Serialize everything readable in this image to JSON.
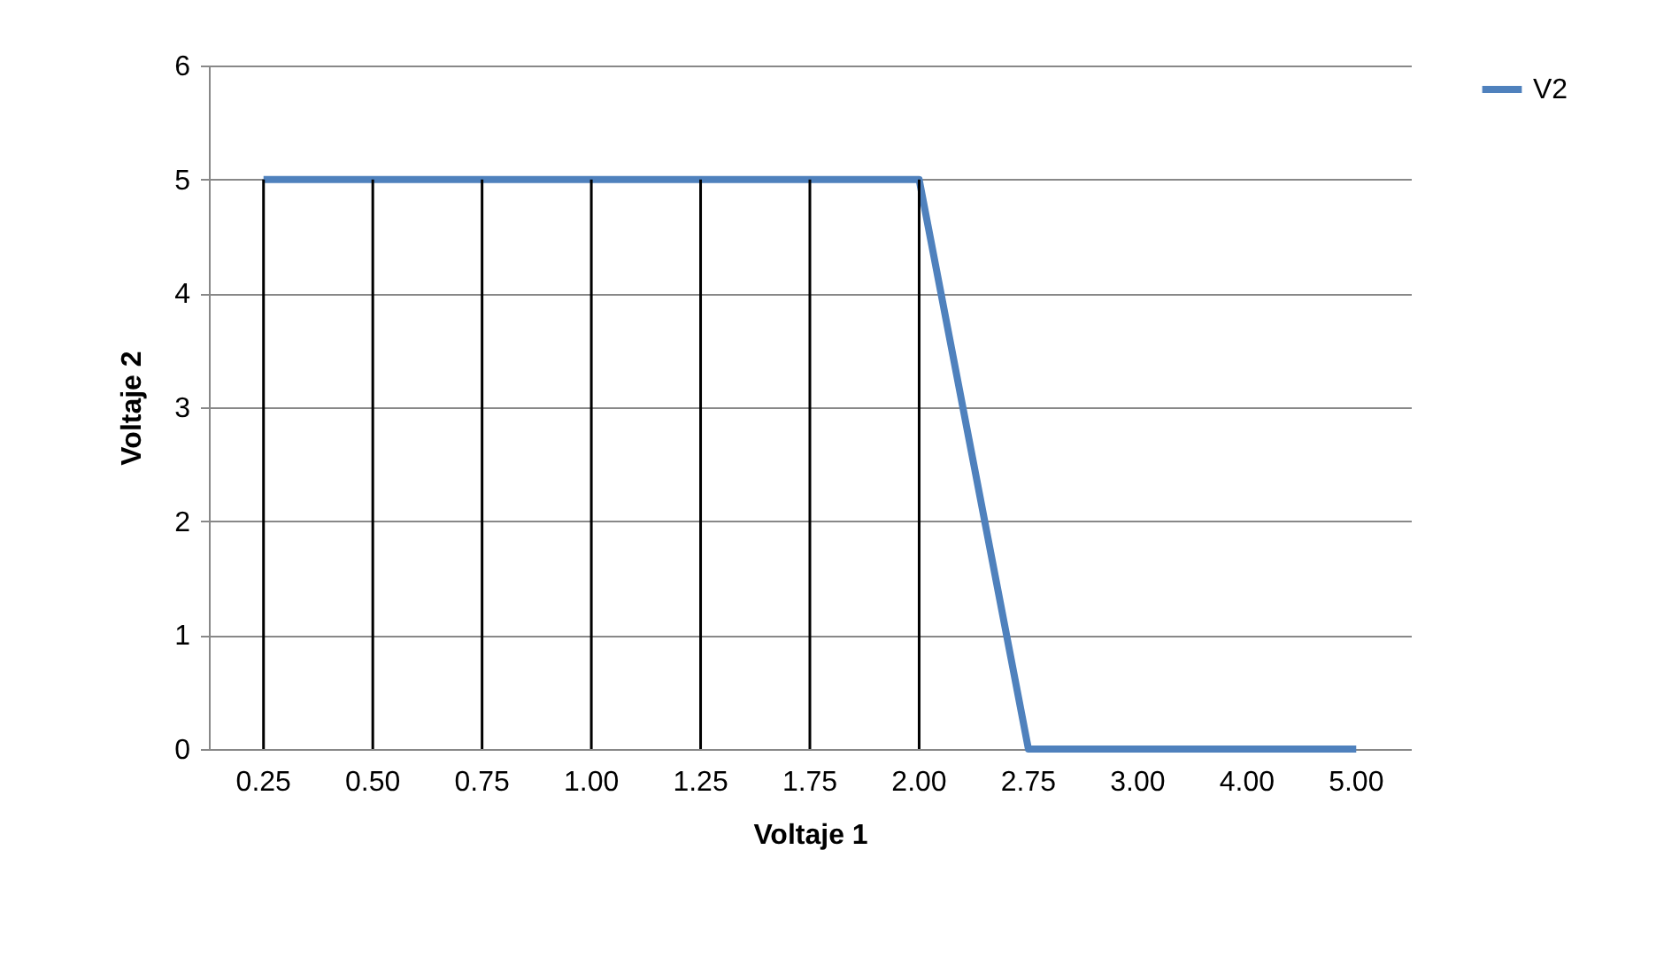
{
  "chart_data": {
    "type": "line",
    "xlabel": "Voltaje 1",
    "ylabel": "Voltaje 2",
    "categories": [
      "0.25",
      "0.50",
      "0.75",
      "1.00",
      "1.25",
      "1.75",
      "2.00",
      "2.75",
      "3.00",
      "4.00",
      "5.00"
    ],
    "series": [
      {
        "type": "bar",
        "color": "#000000",
        "values": [
          5,
          5,
          5,
          5,
          5,
          5,
          5,
          0,
          0,
          0,
          0
        ]
      },
      {
        "name": "V2",
        "color": "#4f81bd",
        "values": [
          5,
          5,
          5,
          5,
          5,
          5,
          5,
          0,
          0,
          0,
          0
        ]
      }
    ],
    "ylim": [
      0,
      6
    ],
    "yticks": [
      0,
      1,
      2,
      3,
      4,
      5,
      6
    ],
    "grid": "y",
    "legend": "right",
    "marker": "none",
    "line_style": "solid"
  }
}
